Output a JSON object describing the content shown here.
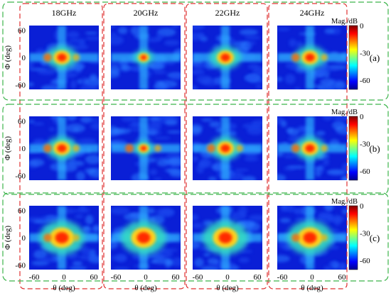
{
  "figure": {
    "columns": [
      {
        "label": "18GHz"
      },
      {
        "label": "20GHz"
      },
      {
        "label": "22GHz"
      },
      {
        "label": "24GHz"
      }
    ],
    "rows": [
      {
        "label": "(a)",
        "colorbar_title": "Mag./dB"
      },
      {
        "label": "(b)",
        "colorbar_title": "Mag./dB"
      },
      {
        "label": "(c)",
        "colorbar_title": "Mag./dB"
      }
    ],
    "colors": {
      "col_box": "#e03030",
      "row_box": "#3cb44b"
    }
  },
  "chart_data": {
    "type": "heatmap",
    "xlabel": "θ (deg)",
    "ylabel": "Φ (deg)",
    "xlim": [
      -70,
      70
    ],
    "ylim": [
      -70,
      70
    ],
    "x_ticks": [
      -60,
      0,
      60
    ],
    "y_ticks": [
      60,
      0,
      -60
    ],
    "colorbar": {
      "title": "Mag./dB",
      "ticks": [
        0,
        -30,
        -60
      ],
      "range": [
        -70,
        0
      ],
      "colormap": "jet"
    },
    "panels": [
      {
        "row": "(a)",
        "frequency": "18GHz"
      },
      {
        "row": "(a)",
        "frequency": "20GHz"
      },
      {
        "row": "(a)",
        "frequency": "22GHz"
      },
      {
        "row": "(a)",
        "frequency": "24GHz"
      },
      {
        "row": "(b)",
        "frequency": "18GHz"
      },
      {
        "row": "(b)",
        "frequency": "20GHz"
      },
      {
        "row": "(b)",
        "frequency": "22GHz"
      },
      {
        "row": "(b)",
        "frequency": "24GHz"
      },
      {
        "row": "(c)",
        "frequency": "18GHz"
      },
      {
        "row": "(c)",
        "frequency": "20GHz"
      },
      {
        "row": "(c)",
        "frequency": "22GHz"
      },
      {
        "row": "(c)",
        "frequency": "24GHz"
      }
    ]
  }
}
